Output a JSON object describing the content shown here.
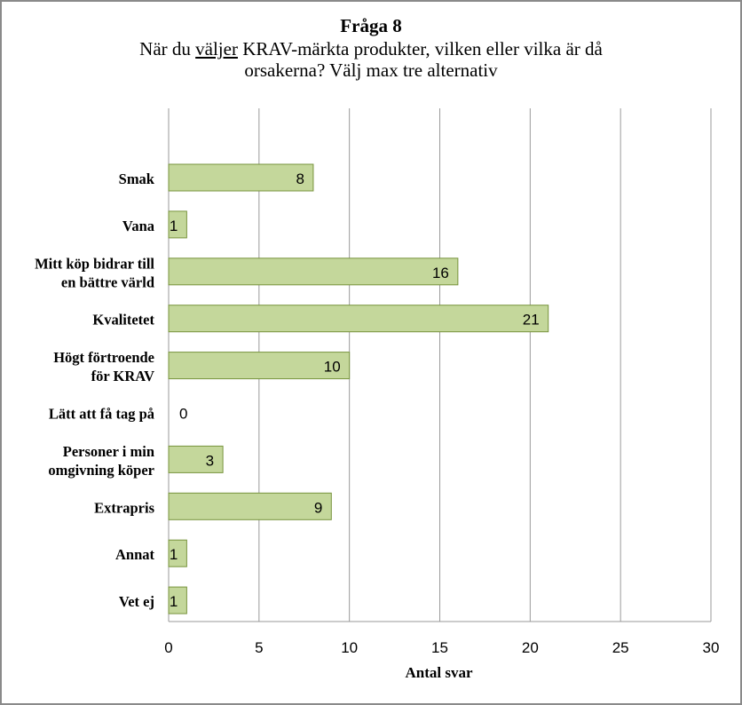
{
  "chart_data": {
    "type": "bar",
    "orientation": "horizontal",
    "title": "Fråga 8",
    "subtitle": {
      "before": "När du ",
      "underlined": "väljer",
      "after": " KRAV-märkta produkter, vilken eller vilka är då",
      "line2": "orsakerna? Välj max tre alternativ"
    },
    "categories": [
      [
        "Smak"
      ],
      [
        "Vana"
      ],
      [
        "Mitt köp bidrar till",
        "en bättre värld"
      ],
      [
        "Kvalitetet"
      ],
      [
        "Högt förtroende",
        "för KRAV"
      ],
      [
        "Lätt att få tag på"
      ],
      [
        "Personer i min",
        "omgivning köper"
      ],
      [
        "Extrapris"
      ],
      [
        "Annat"
      ],
      [
        "Vet ej"
      ]
    ],
    "values": [
      8,
      1,
      16,
      21,
      10,
      0,
      3,
      9,
      1,
      1
    ],
    "xlabel": "Antal svar",
    "ylabel": "",
    "xlim": [
      0,
      30
    ],
    "xticks": [
      0,
      5,
      10,
      15,
      20,
      25,
      30
    ],
    "grid": true,
    "colors": {
      "bar_fill": "#c4d79b",
      "bar_stroke": "#77933c",
      "grid": "#9a9a9a",
      "frame": "#8a8a8a"
    }
  }
}
